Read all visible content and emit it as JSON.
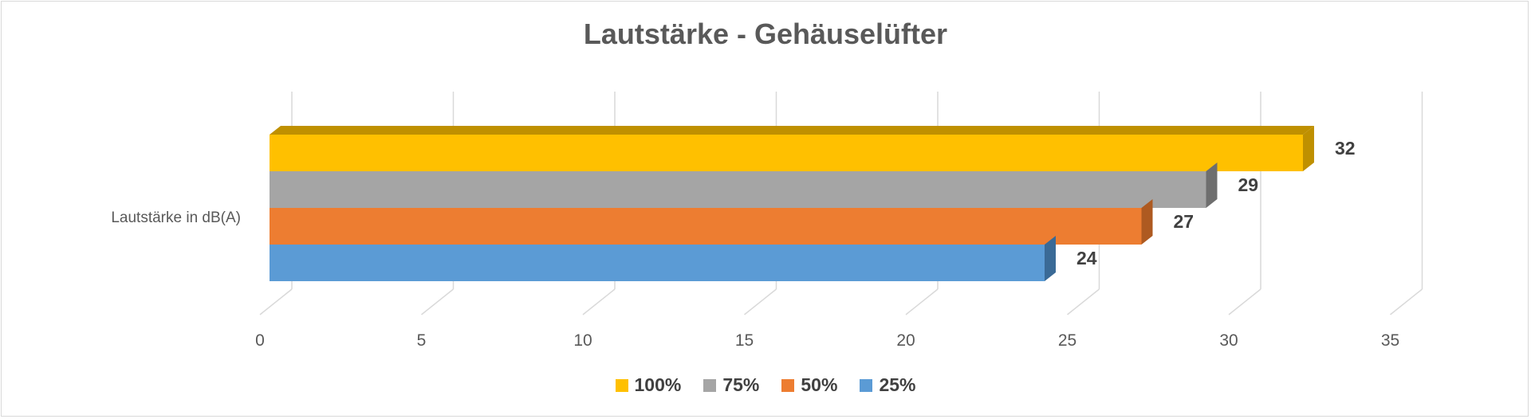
{
  "chart_data": {
    "type": "bar",
    "orientation": "horizontal",
    "style": "3d",
    "title": "Lautstärke - Gehäuselüfter",
    "categories": [
      "Lautstärke in dB(A)"
    ],
    "series": [
      {
        "name": "100%",
        "values": [
          32
        ],
        "color": "#FFC000",
        "side_color": "#BF9000"
      },
      {
        "name": "75%",
        "values": [
          29
        ],
        "color": "#A5A5A5",
        "side_color": "#6E6E6E"
      },
      {
        "name": "50%",
        "values": [
          27
        ],
        "color": "#ED7D31",
        "side_color": "#AE5A21"
      },
      {
        "name": "25%",
        "values": [
          24
        ],
        "color": "#5B9BD5",
        "side_color": "#3A6A96"
      }
    ],
    "x_ticks": [
      "0",
      "5",
      "10",
      "15",
      "20",
      "25",
      "30",
      "35"
    ],
    "xlim": [
      0,
      35
    ],
    "grid": true,
    "legend_position": "bottom",
    "data_labels": true
  }
}
